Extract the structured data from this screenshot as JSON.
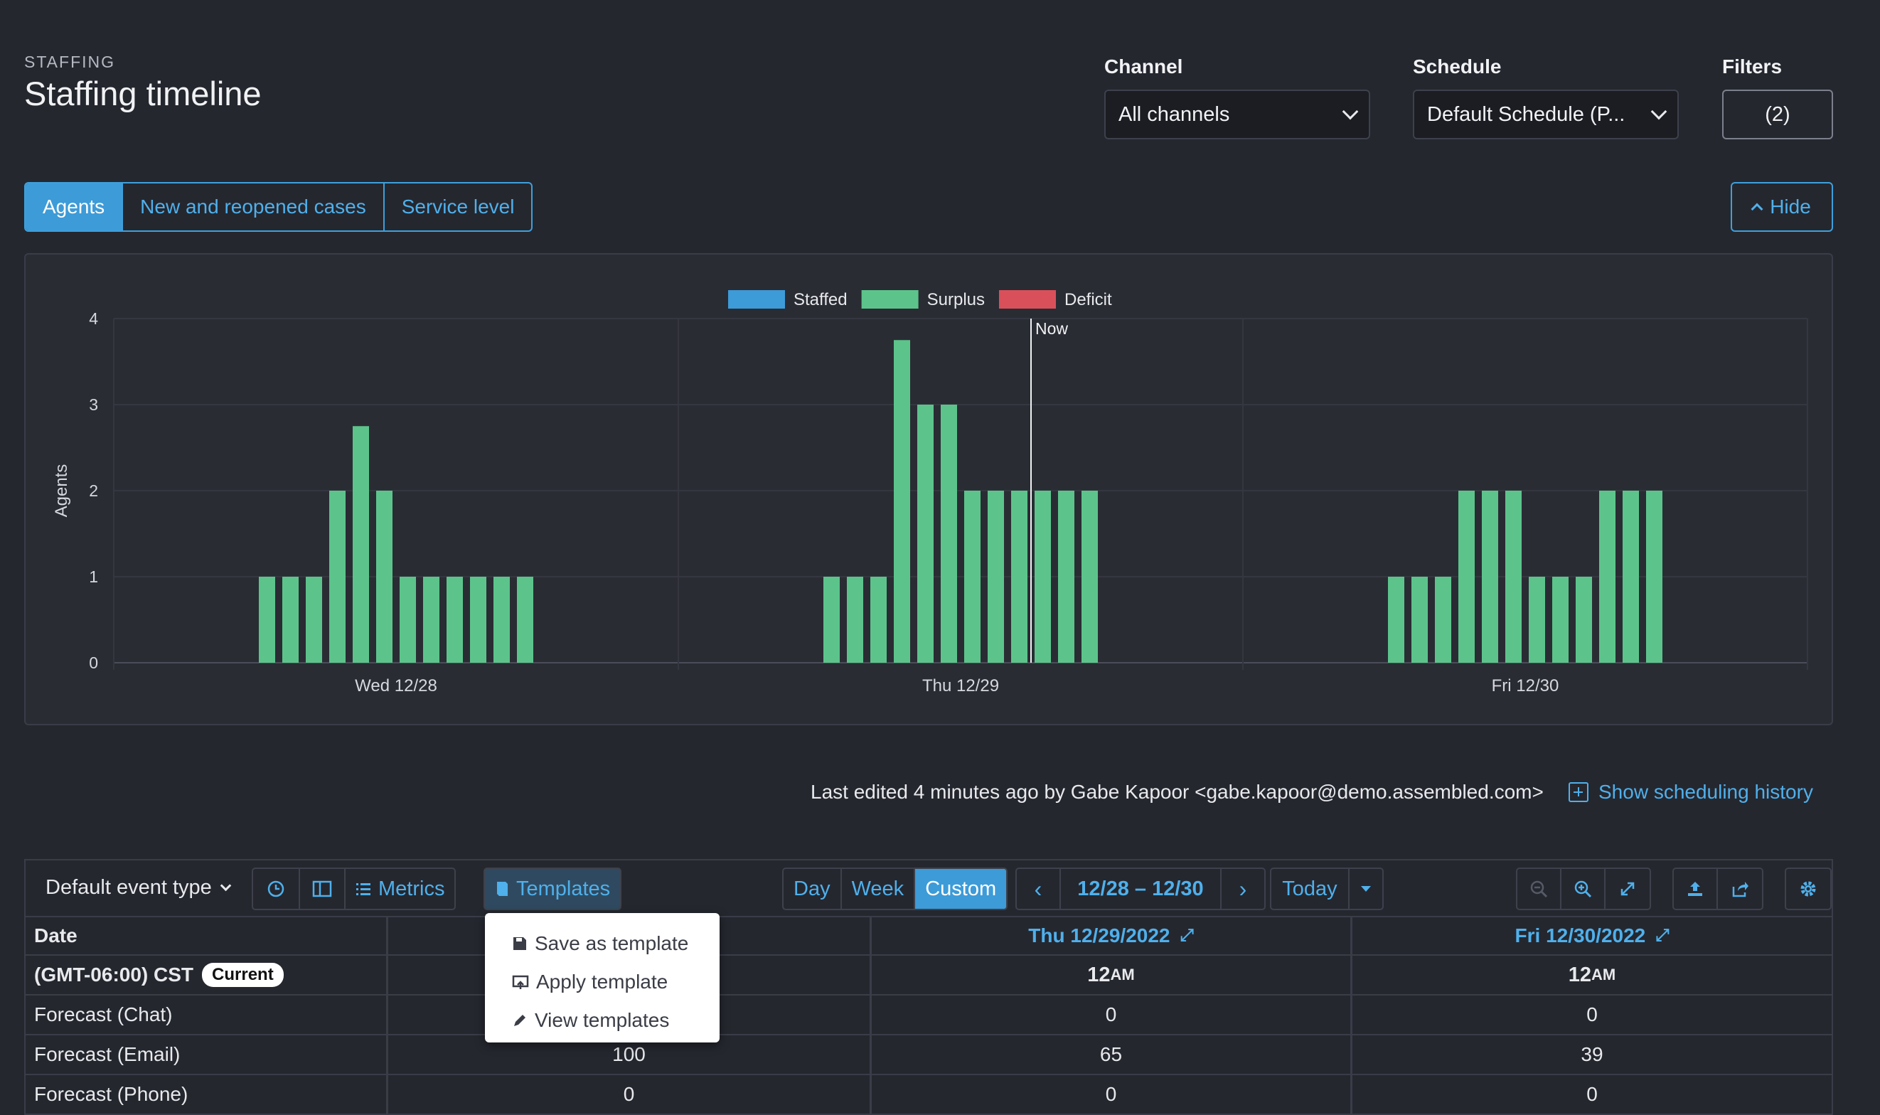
{
  "header": {
    "eyebrow": "STAFFING",
    "title": "Staffing timeline"
  },
  "filters": {
    "channel_label": "Channel",
    "channel_value": "All channels",
    "schedule_label": "Schedule",
    "schedule_value": "Default Schedule (P...",
    "filters_label": "Filters",
    "filters_value": "(2)"
  },
  "tabs": [
    {
      "label": "Agents",
      "active": true
    },
    {
      "label": "New and reopened cases",
      "active": false
    },
    {
      "label": "Service level",
      "active": false
    }
  ],
  "hide_label": "Hide",
  "chart_data": {
    "type": "bar",
    "ylabel": "Agents",
    "ylim": [
      0,
      4
    ],
    "yticks": [
      "0",
      "1",
      "2",
      "3",
      "4"
    ],
    "legend": [
      {
        "name": "Staffed",
        "color": "#3d9bd8"
      },
      {
        "name": "Surplus",
        "color": "#5cc48b"
      },
      {
        "name": "Deficit",
        "color": "#d9505a"
      }
    ],
    "x_labels": [
      "Wed 12/28",
      "Thu 12/29",
      "Fri 12/30"
    ],
    "now_label": "Now",
    "series": [
      {
        "name": "Surplus",
        "color": "#5cc48b",
        "groups": [
          [
            1,
            1,
            1,
            2,
            2.75,
            2,
            1,
            1,
            1,
            1,
            1,
            1
          ],
          [
            1,
            1,
            1,
            3.75,
            3,
            3,
            2,
            2,
            2,
            2,
            2,
            2
          ],
          [
            1,
            1,
            1,
            2,
            2,
            2,
            1,
            1,
            1,
            2,
            2,
            2
          ]
        ]
      }
    ]
  },
  "last_edited": "Last edited 4 minutes ago by Gabe Kapoor <gabe.kapoor@demo.assembled.com>",
  "history_link": "Show scheduling history",
  "toolbar": {
    "event_type": "Default event type",
    "metrics_label": "Metrics",
    "templates_label": "Templates",
    "views": [
      "Day",
      "Week",
      "Custom"
    ],
    "active_view": "Custom",
    "date_range": "12/28 – 12/30",
    "today_label": "Today"
  },
  "menu": {
    "items": [
      "Save as template",
      "Apply template",
      "View templates"
    ]
  },
  "table": {
    "header": [
      "Date",
      "",
      "Thu 12/29/2022",
      "Fri 12/30/2022"
    ],
    "timezone": "(GMT-06:00) CST",
    "current_badge": "Current",
    "time_row": [
      "",
      "12",
      "12"
    ],
    "time_suffix": "AM",
    "rows": [
      {
        "label": "Forecast (Chat)",
        "values": [
          "",
          "0",
          "0"
        ]
      },
      {
        "label": "Forecast (Email)",
        "values": [
          "100",
          "65",
          "39"
        ]
      },
      {
        "label": "Forecast (Phone)",
        "values": [
          "0",
          "0",
          "0"
        ]
      }
    ]
  }
}
